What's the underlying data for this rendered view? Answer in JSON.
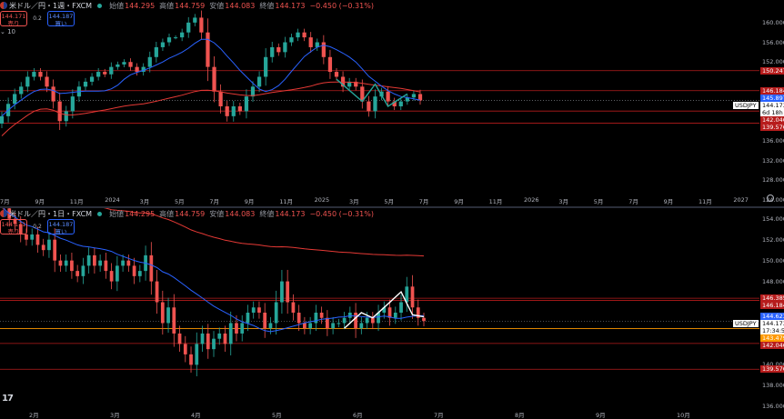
{
  "colors": {
    "bg": "#000000",
    "bull": "#26a69a",
    "bear": "#ef5350",
    "ma_short": "#2962ff",
    "ma_long": "#e53935",
    "hline_red": "#b71c1c",
    "hline_orange": "#ff9800"
  },
  "icons": {
    "flag": "jp-us-flag-icon",
    "status": "market-open-dot-icon",
    "settings": "gear-icon",
    "logo": "tradingview-logo-icon"
  },
  "top": {
    "symbol": "米ドル／円・1週・FXCM",
    "ohlc": [
      {
        "label": "始値",
        "value": "144.295"
      },
      {
        "label": "高値",
        "value": "144.759"
      },
      {
        "label": "安値",
        "value": "144.083"
      },
      {
        "label": "終値",
        "value": "144.173"
      }
    ],
    "change": "−0.450 (−0.31%)",
    "sell_price": "144.171",
    "sell_label": "売り",
    "spread": "0.2",
    "buy_price": "144.187",
    "buy_label": "買い",
    "indicator_toggle": "⌄ 10",
    "y_ticks": [
      "160.000",
      "156.000",
      "152.000",
      "136.000",
      "132.000",
      "128.000",
      "124.000"
    ],
    "x_ticks": [
      "7月",
      "9月",
      "11月",
      "2024",
      "3月",
      "5月",
      "7月",
      "9月",
      "11月",
      "2025",
      "3月",
      "5月",
      "7月",
      "9月",
      "11月",
      "2026",
      "3月",
      "5月",
      "7月",
      "9月",
      "11月",
      "2027"
    ],
    "price_labels": [
      {
        "text": "150.247",
        "price": 150.247,
        "kind": "red"
      },
      {
        "text": "146.184",
        "price": 146.184,
        "kind": "red"
      },
      {
        "text": "145.897",
        "price": 145.897,
        "kind": "blue"
      },
      {
        "text": "USDJPY",
        "price": 144.173,
        "kind": "symbol"
      },
      {
        "text": "144.173",
        "price": 144.173,
        "kind": "white"
      },
      {
        "text": "6d 18h",
        "price": 144.173,
        "kind": "timer"
      },
      {
        "text": "142.046",
        "price": 142.046,
        "kind": "red"
      },
      {
        "text": "139.576",
        "price": 139.576,
        "kind": "red"
      }
    ]
  },
  "bottom": {
    "symbol": "米ドル／円・1日・FXCM",
    "ohlc": [
      {
        "label": "始値",
        "value": "144.295"
      },
      {
        "label": "高値",
        "value": "144.759"
      },
      {
        "label": "安値",
        "value": "144.083"
      },
      {
        "label": "終値",
        "value": "144.173"
      }
    ],
    "change": "−0.450 (−0.31%)",
    "sell_price": "144.171",
    "sell_label": "売り",
    "spread": "0.2",
    "buy_price": "144.187",
    "buy_label": "買い",
    "y_ticks": [
      "154.000",
      "152.000",
      "150.000",
      "148.000",
      "140.000",
      "138.000",
      "136.000"
    ],
    "x_ticks": [
      "2月",
      "3月",
      "4月",
      "5月",
      "6月",
      "7月",
      "8月",
      "9月",
      "10月"
    ],
    "price_labels": [
      {
        "text": "146.385",
        "price": 146.385,
        "kind": "red"
      },
      {
        "text": "146.184",
        "price": 146.184,
        "kind": "red"
      },
      {
        "text": "144.623",
        "price": 144.623,
        "kind": "blue"
      },
      {
        "text": "USDJPY",
        "price": 144.173,
        "kind": "symbol"
      },
      {
        "text": "144.173",
        "price": 144.173,
        "kind": "white"
      },
      {
        "text": "17:34:53",
        "price": 144.173,
        "kind": "timer"
      },
      {
        "text": "143.479",
        "price": 143.479,
        "kind": "orange"
      },
      {
        "text": "142.046",
        "price": 142.046,
        "kind": "red"
      },
      {
        "text": "139.576",
        "price": 139.576,
        "kind": "red"
      }
    ]
  },
  "chart_data": [
    {
      "type": "candlestick",
      "title": "米ドル／円・1週・FXCM",
      "timeframe": "weekly",
      "ylim": [
        124,
        162
      ],
      "approx_closes": [
        141,
        143.5,
        145.5,
        147,
        149,
        150,
        149,
        147,
        144,
        140,
        142,
        145,
        147,
        148,
        149,
        150,
        149.5,
        151,
        151.5,
        152,
        151,
        150,
        151,
        153,
        155,
        156,
        157,
        157,
        158,
        160,
        161,
        158,
        151,
        146,
        143,
        141,
        143,
        142,
        145,
        147,
        149,
        153,
        155,
        154,
        156,
        157,
        158,
        157,
        155,
        156,
        153,
        150,
        149,
        147,
        148,
        147,
        144,
        142,
        145,
        146,
        144,
        143,
        144,
        144.8,
        145.5,
        144.2
      ],
      "moving_averages": [
        {
          "name": "MA short",
          "color": "#2962ff"
        },
        {
          "name": "MA long",
          "color": "#e53935"
        }
      ],
      "horizontal_levels": [
        150.247,
        146.184,
        142.046,
        139.576
      ],
      "last_price": 144.173
    },
    {
      "type": "candlestick",
      "title": "米ドル／円・1日・FXCM",
      "timeframe": "daily",
      "ylim": [
        135.5,
        154.5
      ],
      "approx_closes": [
        155,
        154,
        153.5,
        152.5,
        152,
        152.5,
        151.5,
        151,
        152,
        150,
        149.5,
        150,
        149,
        148.5,
        149.5,
        150.5,
        149.5,
        150,
        149,
        148,
        149.5,
        150,
        149.5,
        148.5,
        149,
        150.5,
        148,
        146,
        144,
        145.5,
        143,
        142,
        141,
        140,
        142,
        143,
        141.5,
        142.5,
        143,
        142,
        144,
        143,
        144,
        145,
        145.5,
        145,
        143.5,
        144,
        146,
        148,
        146,
        145,
        144,
        143.5,
        144,
        145,
        144.5,
        143.5,
        144,
        144,
        144.5,
        145,
        143.5,
        144,
        144.5,
        144,
        145,
        145.5,
        144.5,
        145,
        146,
        147.5,
        145.5,
        144.5,
        144.2
      ],
      "moving_averages": [
        {
          "name": "MA short",
          "color": "#2962ff"
        },
        {
          "name": "MA long",
          "color": "#e53935"
        }
      ],
      "horizontal_levels": [
        146.385,
        146.184,
        143.479,
        142.046,
        139.576
      ],
      "last_price": 144.173
    }
  ]
}
